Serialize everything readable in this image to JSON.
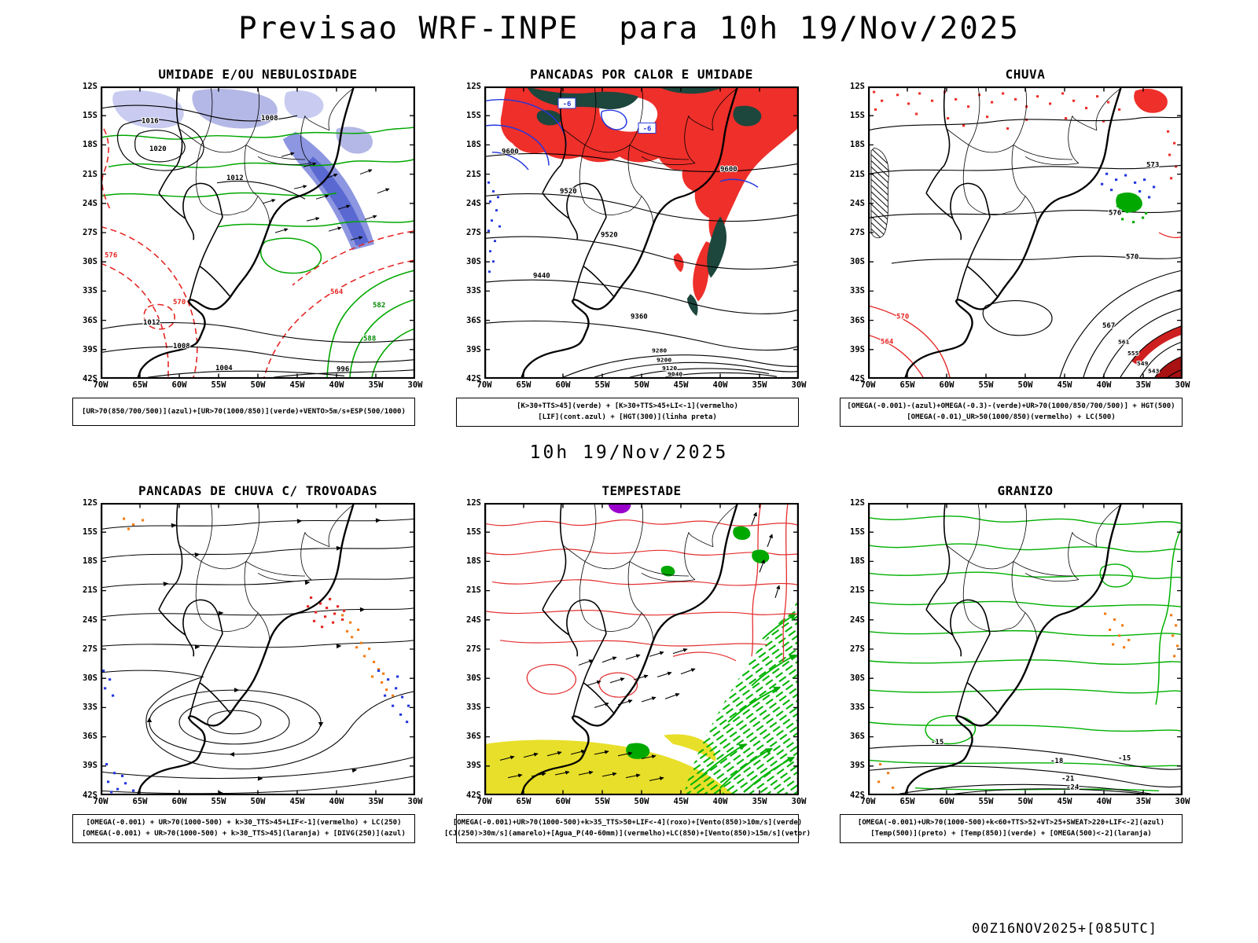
{
  "page": {
    "title": "Previsao WRF-INPE  para 10h 19/Nov/2025",
    "mid_caption": "10h 19/Nov/2025",
    "footer": "00Z16NOV2025+[085UTC]"
  },
  "axes": {
    "lat_ticks": [
      "12S",
      "15S",
      "18S",
      "21S",
      "24S",
      "27S",
      "30S",
      "33S",
      "36S",
      "39S",
      "42S"
    ],
    "lon_ticks": [
      "70W",
      "65W",
      "60W",
      "55W",
      "50W",
      "45W",
      "40W",
      "35W",
      "30W"
    ]
  },
  "colors": {
    "red_fill": "#ee2f2a",
    "dark_teal": "#1d463d",
    "green_contour": "#00a800",
    "blue_contour": "#2236dd",
    "lavender": "#b4b8e6",
    "humidity_blue": "#5a68d2",
    "orange": "#f27c12",
    "yellow": "#e8df2a",
    "purple": "#9a00cc",
    "dark_red": "#a81212"
  },
  "chart_data": [
    {
      "type": "contour-map",
      "title": "UMIDADE E/OU NEBULOSIDADE",
      "lon_range": [
        "70W",
        "30W"
      ],
      "lat_range": [
        "12S",
        "42S"
      ],
      "legend_lines": [
        "[UR>70(850/700/500)](azul)+[UR>70(1000/850)](verde)+VENTO>5m/s+ESP(500/1000)"
      ],
      "contour_labels": {
        "black": [
          "1016",
          "1020",
          "1008",
          "1012",
          "1012",
          "1008",
          "1004",
          "996"
        ],
        "red": [
          "576",
          "570",
          "564"
        ],
        "green": [
          "582",
          "588"
        ]
      }
    },
    {
      "type": "contour-map",
      "title": "PANCADAS POR CALOR E UMIDADE",
      "lon_range": [
        "70W",
        "30W"
      ],
      "lat_range": [
        "12S",
        "42S"
      ],
      "legend_lines": [
        "[K>30+TTS>45](verde) + [K>30+TTS>45+LI<-1](vermelho)",
        "[LIF](cont.azul) + [HGT(300)](linha preta)"
      ],
      "contour_labels": {
        "black": [
          "9600",
          "9600",
          "9520",
          "9520",
          "9440",
          "9360",
          "9280",
          "9200",
          "9120",
          "9040"
        ],
        "blue": [
          "-6",
          "-6"
        ]
      }
    },
    {
      "type": "contour-map",
      "title": "CHUVA",
      "lon_range": [
        "70W",
        "30W"
      ],
      "lat_range": [
        "12S",
        "42S"
      ],
      "legend_lines": [
        "[OMEGA(-0.001)-(azul)+OMEGA(-0.3)-(verde)+UR>70(1000/850/700/500)] + HGT(500)",
        "[OMEGA(-0.01)_UR>50(1000/850)(vermelho) + LC(500)"
      ],
      "contour_labels": {
        "black": [
          "576",
          "573",
          "570",
          "567",
          "561",
          "555",
          "549",
          "543"
        ],
        "red": [
          "570",
          "564"
        ]
      }
    },
    {
      "type": "contour-map",
      "title": "PANCADAS DE CHUVA C/ TROVOADAS",
      "lon_range": [
        "70W",
        "30W"
      ],
      "lat_range": [
        "12S",
        "42S"
      ],
      "legend_lines": [
        "[OMEGA(-0.001) + UR>70(1000-500) + k>30_TTS>45+LIF<-1](vermelho) + LC(250)",
        "[OMEGA(-0.001) + UR>70(1000-500) + k>30_TTS>45](laranja) + [DIVG(250)](azul)"
      ],
      "contour_labels": {}
    },
    {
      "type": "contour-map",
      "title": "TEMPESTADE",
      "lon_range": [
        "70W",
        "30W"
      ],
      "lat_range": [
        "12S",
        "42S"
      ],
      "legend_lines": [
        "[OMEGA(-0.001)+UR>70(1000-500)+k>35_TTS>50+LIF<-4](roxo)+[Vento(850)>10m/s](verde)",
        "[CJ(250)>30m/s](amarelo)+[Agua_P(40-60mm)](vermelho)+LC(850)+[Vento(850)>15m/s](vetor)"
      ],
      "contour_labels": {}
    },
    {
      "type": "contour-map",
      "title": "GRANIZO",
      "lon_range": [
        "70W",
        "30W"
      ],
      "lat_range": [
        "12S",
        "42S"
      ],
      "legend_lines": [
        "[OMEGA(-0.001)+UR>70(1000-500)+k<60+TTS>52+VT>25+SWEAT>220+LIF<-2](azul)",
        "[Temp(500)](preto) + [Temp(850)](verde) + [OMEGA(500)<-2](laranja)"
      ],
      "contour_labels": {
        "black": [
          "-15",
          "-15",
          "-18",
          "-21",
          "-24"
        ]
      }
    }
  ]
}
